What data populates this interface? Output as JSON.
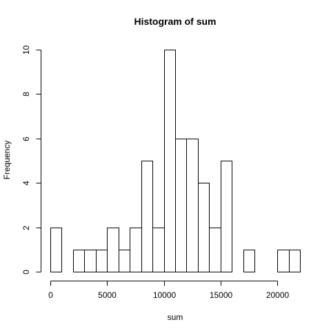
{
  "chart_data": {
    "type": "histogram",
    "title": "Histogram of sum",
    "xlabel": "sum",
    "ylabel": "Frequency",
    "bin_width": 1000,
    "bins": [
      {
        "start": 0,
        "end": 1000,
        "count": 2
      },
      {
        "start": 1000,
        "end": 2000,
        "count": 0
      },
      {
        "start": 2000,
        "end": 3000,
        "count": 1
      },
      {
        "start": 3000,
        "end": 4000,
        "count": 1
      },
      {
        "start": 4000,
        "end": 5000,
        "count": 1
      },
      {
        "start": 5000,
        "end": 6000,
        "count": 2
      },
      {
        "start": 6000,
        "end": 7000,
        "count": 1
      },
      {
        "start": 7000,
        "end": 8000,
        "count": 2
      },
      {
        "start": 8000,
        "end": 9000,
        "count": 5
      },
      {
        "start": 9000,
        "end": 10000,
        "count": 2
      },
      {
        "start": 10000,
        "end": 11000,
        "count": 10
      },
      {
        "start": 11000,
        "end": 12000,
        "count": 6
      },
      {
        "start": 12000,
        "end": 13000,
        "count": 6
      },
      {
        "start": 13000,
        "end": 14000,
        "count": 4
      },
      {
        "start": 14000,
        "end": 15000,
        "count": 2
      },
      {
        "start": 15000,
        "end": 16000,
        "count": 5
      },
      {
        "start": 16000,
        "end": 17000,
        "count": 0
      },
      {
        "start": 17000,
        "end": 18000,
        "count": 1
      },
      {
        "start": 18000,
        "end": 19000,
        "count": 0
      },
      {
        "start": 19000,
        "end": 20000,
        "count": 0
      },
      {
        "start": 20000,
        "end": 21000,
        "count": 1
      },
      {
        "start": 21000,
        "end": 22000,
        "count": 1
      }
    ],
    "xlim": [
      0,
      22000
    ],
    "ylim": [
      0,
      10
    ],
    "x_ticks": [
      0,
      5000,
      10000,
      15000,
      20000
    ],
    "x_tick_labels": [
      "0",
      "5000",
      "10000",
      "15000",
      "20000"
    ],
    "y_ticks": [
      0,
      2,
      4,
      6,
      8,
      10
    ],
    "y_tick_labels": [
      "0",
      "2",
      "4",
      "6",
      "8",
      "10"
    ],
    "grid": false,
    "legend": "none",
    "colors": {
      "bar_fill": "#ffffff",
      "bar_stroke": "#000000",
      "axis": "#000000",
      "background": "#ffffff"
    }
  }
}
